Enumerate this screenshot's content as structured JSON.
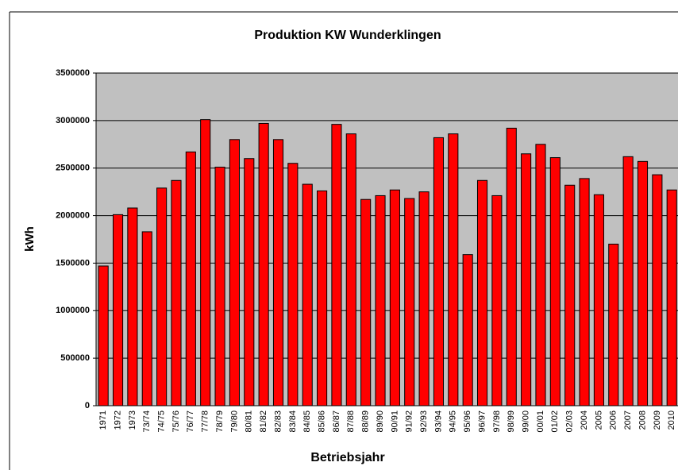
{
  "chart_data": {
    "type": "bar",
    "title": "Produktion KW Wunderklingen",
    "x_label": "Betriebsjahr",
    "y_label": "kWh",
    "categories": [
      "1971",
      "1972",
      "1973",
      "73/74",
      "74/75",
      "75/76",
      "76/77",
      "77/78",
      "78/79",
      "79/80",
      "80/81",
      "81/82",
      "82/83",
      "83/84",
      "84/85",
      "85/86",
      "86/87",
      "87/88",
      "88/89",
      "89/90",
      "90/91",
      "91/92",
      "92/93",
      "93/94",
      "94/95",
      "95/96",
      "96/97",
      "97/98",
      "98/99",
      "99/00",
      "00/01",
      "01/02",
      "02/03",
      "2004",
      "2005",
      "2006",
      "2007",
      "2008",
      "2009",
      "2010"
    ],
    "values": [
      1470000,
      2010000,
      2080000,
      1830000,
      2290000,
      2370000,
      2670000,
      3010000,
      2510000,
      2800000,
      2600000,
      2970000,
      2800000,
      2550000,
      2330000,
      2260000,
      2960000,
      2860000,
      2170000,
      2210000,
      2270000,
      2180000,
      2250000,
      2820000,
      2860000,
      1590000,
      2370000,
      2210000,
      2920000,
      2650000,
      2750000,
      2610000,
      2320000,
      2390000,
      2220000,
      1700000,
      2620000,
      2570000,
      2430000,
      2270000
    ],
    "color": "#ff0000",
    "ylim": [
      0,
      3500000
    ],
    "yticks": [
      0,
      500000,
      1000000,
      1500000,
      2000000,
      2500000,
      3000000,
      3500000
    ],
    "grid": true
  }
}
